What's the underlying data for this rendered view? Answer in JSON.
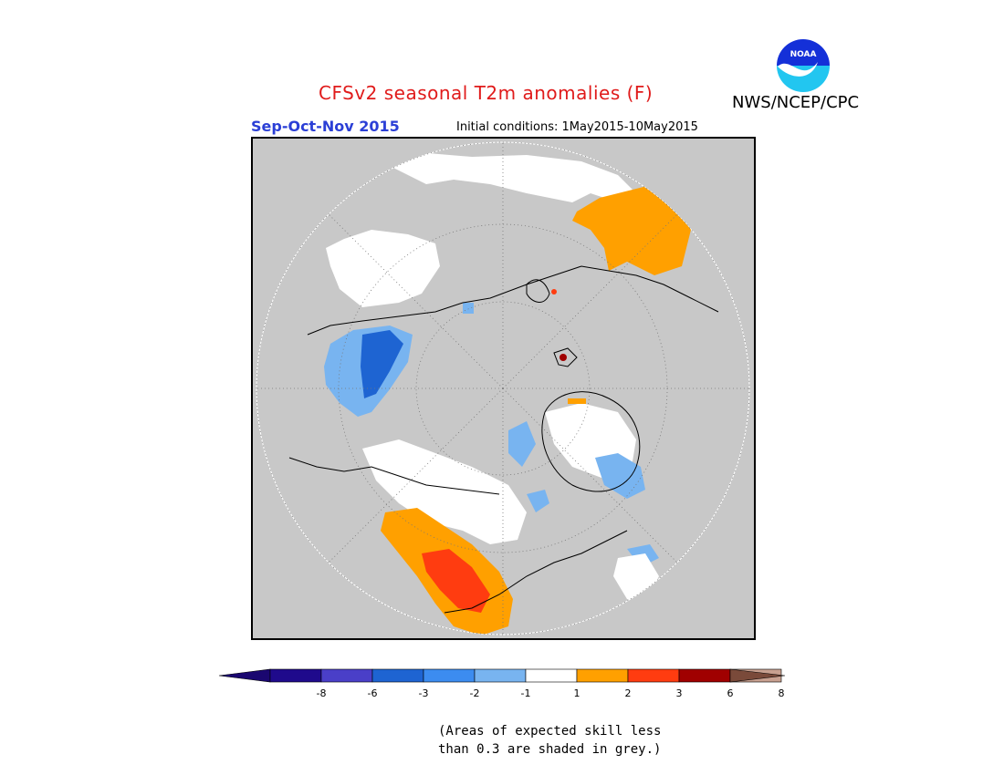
{
  "header": {
    "title": "CFSv2 seasonal T2m anomalies (F)",
    "agency": "NWS/NCEP/CPC",
    "logo_text": "NOAA",
    "season": "Sep-Oct-Nov 2015",
    "initial_conditions": "Initial conditions: 1May2015-10May2015"
  },
  "colors": {
    "grey": "#c8c8c8",
    "white": "#ffffff",
    "title": "#e01b1b",
    "season": "#2b3fd6"
  },
  "legend": {
    "bins": [
      {
        "label": "-8",
        "color": "#1f0a8c"
      },
      {
        "label": "-6",
        "color": "#4a3fc8"
      },
      {
        "label": "-3",
        "color": "#1e64d2"
      },
      {
        "label": "-2",
        "color": "#3c8cf0"
      },
      {
        "label": "-1",
        "color": "#78b4f0"
      },
      {
        "label": "1",
        "color": "#ffffff"
      },
      {
        "label": "2",
        "color": "#ffa000"
      },
      {
        "label": "3",
        "color": "#ff3c10"
      },
      {
        "label": "6",
        "color": "#a00000"
      },
      {
        "label": "8",
        "color": "#c8a090"
      }
    ],
    "end_low_color": "#1a0770",
    "end_high_color": "#7a4a3a",
    "tick_labels": [
      "-8",
      "-6",
      "-3",
      "-2",
      "-1",
      "1",
      "2",
      "3",
      "6",
      "8"
    ]
  },
  "footnote": {
    "line1": "(Areas of expected skill less",
    "line2": "than 0.3 are shaded in grey.)"
  }
}
